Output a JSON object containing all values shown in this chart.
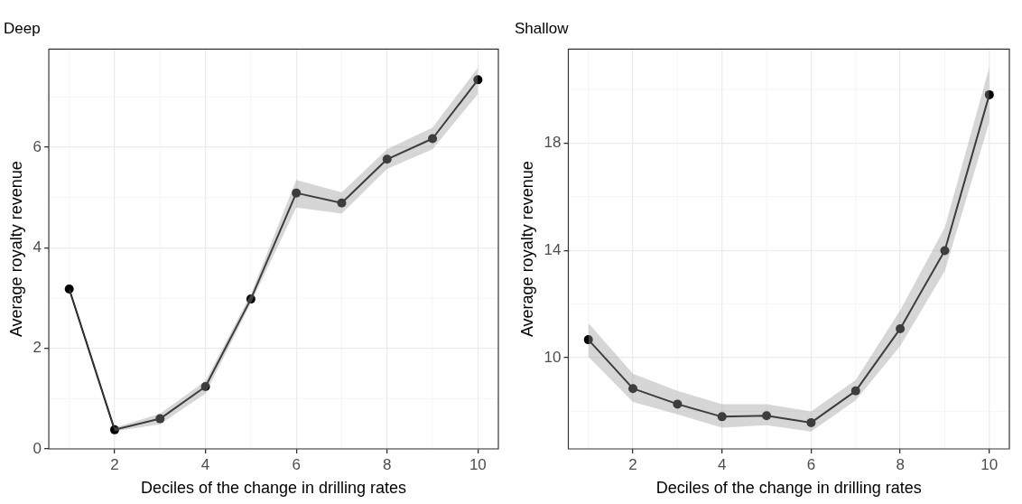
{
  "chart_data": [
    {
      "type": "line",
      "title": "Deep",
      "xlabel": "Deciles of the change in drilling rates",
      "ylabel": "Average royalty revenue",
      "x": [
        1,
        2,
        3,
        4,
        5,
        6,
        7,
        8,
        9,
        10
      ],
      "xlim": [
        0.55,
        10.45
      ],
      "xticks": [
        2,
        4,
        6,
        8,
        10
      ],
      "ylim": [
        0,
        7.95
      ],
      "yticks": [
        0,
        2,
        4,
        6
      ],
      "grid": true,
      "legend": false,
      "marker": "circle",
      "line_style": "solid",
      "series": [
        {
          "color": "#000000",
          "values": [
            3.18,
            0.38,
            0.6,
            1.24,
            2.98,
            5.09,
            4.89,
            5.76,
            6.17,
            7.34
          ],
          "lower": [
            3.15,
            0.35,
            0.49,
            1.1,
            2.9,
            4.8,
            4.68,
            5.57,
            5.96,
            7.06
          ],
          "upper": [
            3.21,
            0.42,
            0.7,
            1.35,
            3.08,
            5.35,
            5.1,
            5.96,
            6.39,
            7.58
          ]
        }
      ]
    },
    {
      "type": "line",
      "title": "Shallow",
      "xlabel": "Deciles of the change in drilling rates",
      "ylabel": "Average royalty revenue",
      "x": [
        1,
        2,
        3,
        4,
        5,
        6,
        7,
        8,
        9,
        10
      ],
      "xlim": [
        0.55,
        10.45
      ],
      "xticks": [
        2,
        4,
        6,
        8,
        10
      ],
      "ylim": [
        6.6,
        21.5
      ],
      "yticks": [
        10,
        14,
        18
      ],
      "grid": true,
      "legend": false,
      "marker": "circle",
      "line_style": "solid",
      "series": [
        {
          "color": "#000000",
          "values": [
            10.67,
            8.85,
            8.27,
            7.8,
            7.84,
            7.58,
            8.76,
            11.08,
            13.99,
            19.8
          ],
          "lower": [
            10.03,
            8.35,
            7.89,
            7.39,
            7.48,
            7.25,
            8.41,
            10.44,
            13.22,
            18.79
          ],
          "upper": [
            11.29,
            9.4,
            8.76,
            8.27,
            8.27,
            8.0,
            9.17,
            11.77,
            14.85,
            20.82
          ]
        }
      ]
    }
  ]
}
